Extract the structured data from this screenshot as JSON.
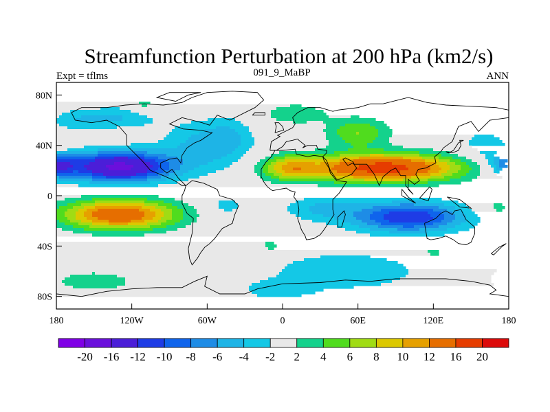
{
  "chart_data": {
    "type": "contour-map",
    "title": "Streamfunction Perturbation at 200 hPa (km2/s)",
    "left_string": "Expt = tflms",
    "center_string": "091_9_MaBP",
    "right_string": "ANN",
    "xlim": [
      -180,
      180
    ],
    "ylim": [
      -90,
      90
    ],
    "x_ticks": [
      {
        "value": -180,
        "label": "180"
      },
      {
        "value": -120,
        "label": "120W"
      },
      {
        "value": -60,
        "label": "60W"
      },
      {
        "value": 0,
        "label": "0"
      },
      {
        "value": 60,
        "label": "60E"
      },
      {
        "value": 120,
        "label": "120E"
      },
      {
        "value": 180,
        "label": "180"
      }
    ],
    "y_ticks": [
      {
        "value": 80,
        "label": "80N"
      },
      {
        "value": 40,
        "label": "40N"
      },
      {
        "value": 0,
        "label": "0"
      },
      {
        "value": -40,
        "label": "40S"
      },
      {
        "value": -80,
        "label": "80S"
      }
    ],
    "levels": [
      -20,
      -16,
      -12,
      -10,
      -8,
      -6,
      -4,
      -2,
      2,
      4,
      6,
      8,
      10,
      12,
      16,
      20
    ],
    "colors": [
      "#7f00e6",
      "#6a10dc",
      "#4b1ed8",
      "#1e3ce6",
      "#0f64ec",
      "#1e8ce6",
      "#1eb4e6",
      "#14c8e6",
      "#e8e8e8",
      "#14d28c",
      "#50dc1e",
      "#a0dc14",
      "#dcc800",
      "#e6a000",
      "#e66e00",
      "#e63c00",
      "#dc0a0a"
    ],
    "anomalies": [
      {
        "lon": -130,
        "lat": 23,
        "slon": 42,
        "slat": 12,
        "amp": -17
      },
      {
        "lon": -180,
        "lat": 25,
        "slon": 15,
        "slat": 10,
        "amp": -9
      },
      {
        "lon": 180,
        "lat": 25,
        "slon": 15,
        "slat": 10,
        "amp": -9
      },
      {
        "lon": -60,
        "lat": 40,
        "slon": 35,
        "slat": 20,
        "amp": -5
      },
      {
        "lon": -130,
        "lat": 62,
        "slon": 30,
        "slat": 9,
        "amp": -4
      },
      {
        "lon": -165,
        "lat": 60,
        "slon": 20,
        "slat": 9,
        "amp": -3
      },
      {
        "lon": -42,
        "lat": 48,
        "slon": 16,
        "slat": 14,
        "amp": -2
      },
      {
        "lon": 160,
        "lat": 40,
        "slon": 20,
        "slat": 15,
        "amp": -3
      },
      {
        "lon": 80,
        "lat": 22,
        "slon": 60,
        "slat": 11,
        "amp": 18
      },
      {
        "lon": 5,
        "lat": 22,
        "slon": 22,
        "slat": 10,
        "amp": 8
      },
      {
        "lon": 60,
        "lat": 50,
        "slon": 25,
        "slat": 12,
        "amp": 6
      },
      {
        "lon": 10,
        "lat": 65,
        "slon": 25,
        "slat": 8,
        "amp": 4
      },
      {
        "lon": -110,
        "lat": 72,
        "slon": 12,
        "slat": 7,
        "amp": 3
      },
      {
        "lon": -180,
        "lat": 40,
        "slon": 12,
        "slat": 7,
        "amp": 3
      },
      {
        "lon": -130,
        "lat": -15,
        "slon": 45,
        "slat": 12,
        "amp": 15
      },
      {
        "lon": 100,
        "lat": -17,
        "slon": 45,
        "slat": 12,
        "amp": -12
      },
      {
        "lon": 30,
        "lat": -10,
        "slon": 30,
        "slat": 10,
        "amp": -4
      },
      {
        "lon": -45,
        "lat": -8,
        "slon": 15,
        "slat": 8,
        "amp": -3
      },
      {
        "lon": -150,
        "lat": -68,
        "slon": 40,
        "slat": 10,
        "amp": 3
      },
      {
        "lon": 50,
        "lat": -60,
        "slon": 60,
        "slat": 15,
        "amp": -4
      },
      {
        "lon": -5,
        "lat": -75,
        "slon": 30,
        "slat": 8,
        "amp": -3
      },
      {
        "lon": -10,
        "lat": -40,
        "slon": 8,
        "slat": 5,
        "amp": 3
      },
      {
        "lon": 120,
        "lat": -45,
        "slon": 10,
        "slat": 6,
        "amp": 3
      },
      {
        "lon": 170,
        "lat": -10,
        "slon": 15,
        "slat": 8,
        "amp": 3
      },
      {
        "lon": 175,
        "lat": -65,
        "slon": 15,
        "slat": 12,
        "amp": 3
      }
    ],
    "coastlines": [
      [
        [
          -168,
          66
        ],
        [
          -160,
          70
        ],
        [
          -140,
          70
        ],
        [
          -125,
          72
        ],
        [
          -110,
          73
        ],
        [
          -95,
          72
        ],
        [
          -80,
          74
        ],
        [
          -72,
          78
        ],
        [
          -60,
          82
        ],
        [
          -40,
          83
        ],
        [
          -20,
          82
        ],
        [
          -15,
          76
        ],
        [
          -22,
          70
        ],
        [
          -42,
          60
        ],
        [
          -52,
          64
        ],
        [
          -58,
          56
        ],
        [
          -64,
          58
        ],
        [
          -80,
          62
        ],
        [
          -90,
          57
        ],
        [
          -79,
          53
        ],
        [
          -65,
          52
        ],
        [
          -56,
          50
        ],
        [
          -65,
          44
        ],
        [
          -70,
          42
        ],
        [
          -76,
          38
        ],
        [
          -80,
          32
        ],
        [
          -81,
          26
        ],
        [
          -84,
          30
        ],
        [
          -90,
          29
        ],
        [
          -97,
          26
        ],
        [
          -97,
          22
        ],
        [
          -92,
          18
        ],
        [
          -88,
          21
        ],
        [
          -83,
          14
        ],
        [
          -77,
          8
        ],
        [
          -80,
          8
        ],
        [
          -86,
          12
        ],
        [
          -95,
          16
        ],
        [
          -105,
          20
        ],
        [
          -112,
          28
        ],
        [
          -118,
          34
        ],
        [
          -124,
          40
        ],
        [
          -124,
          48
        ],
        [
          -130,
          55
        ],
        [
          -140,
          60
        ],
        [
          -152,
          58
        ],
        [
          -165,
          60
        ],
        [
          -168,
          66
        ]
      ],
      [
        [
          -77,
          8
        ],
        [
          -72,
          12
        ],
        [
          -63,
          10
        ],
        [
          -52,
          5
        ],
        [
          -50,
          0
        ],
        [
          -40,
          -3
        ],
        [
          -35,
          -8
        ],
        [
          -38,
          -15
        ],
        [
          -40,
          -22
        ],
        [
          -48,
          -26
        ],
        [
          -54,
          -34
        ],
        [
          -58,
          -38
        ],
        [
          -62,
          -41
        ],
        [
          -65,
          -45
        ],
        [
          -68,
          -50
        ],
        [
          -72,
          -55
        ],
        [
          -74,
          -50
        ],
        [
          -75,
          -42
        ],
        [
          -72,
          -30
        ],
        [
          -71,
          -18
        ],
        [
          -76,
          -14
        ],
        [
          -80,
          -6
        ],
        [
          -80,
          0
        ],
        [
          -78,
          4
        ],
        [
          -77,
          8
        ]
      ],
      [
        [
          -10,
          36
        ],
        [
          -9,
          43
        ],
        [
          -2,
          47
        ],
        [
          -4,
          48
        ],
        [
          2,
          51
        ],
        [
          8,
          54
        ],
        [
          10,
          57
        ],
        [
          8,
          62
        ],
        [
          12,
          66
        ],
        [
          20,
          70
        ],
        [
          30,
          70
        ],
        [
          40,
          67
        ],
        [
          44,
          68
        ],
        [
          60,
          70
        ],
        [
          70,
          73
        ],
        [
          80,
          73
        ],
        [
          100,
          78
        ],
        [
          115,
          74
        ],
        [
          130,
          72
        ],
        [
          150,
          71
        ],
        [
          170,
          70
        ],
        [
          180,
          68
        ],
        [
          180,
          62
        ],
        [
          165,
          60
        ],
        [
          160,
          55
        ],
        [
          156,
          51
        ],
        [
          150,
          59
        ],
        [
          140,
          55
        ],
        [
          135,
          43
        ],
        [
          128,
          38
        ],
        [
          126,
          35
        ],
        [
          121,
          31
        ],
        [
          122,
          26
        ],
        [
          114,
          22
        ],
        [
          108,
          21
        ],
        [
          106,
          17
        ],
        [
          109,
          12
        ],
        [
          105,
          9
        ],
        [
          100,
          13
        ],
        [
          100,
          5
        ],
        [
          104,
          1
        ],
        [
          98,
          8
        ],
        [
          98,
          16
        ],
        [
          94,
          16
        ],
        [
          90,
          22
        ],
        [
          86,
          20
        ],
        [
          80,
          15
        ],
        [
          77,
          8
        ],
        [
          73,
          17
        ],
        [
          70,
          21
        ],
        [
          67,
          25
        ],
        [
          57,
          25
        ],
        [
          56,
          27
        ],
        [
          50,
          30
        ],
        [
          48,
          29
        ],
        [
          52,
          24
        ],
        [
          56,
          26
        ],
        [
          59,
          22
        ],
        [
          55,
          17
        ],
        [
          45,
          13
        ],
        [
          43,
          13
        ],
        [
          38,
          20
        ],
        [
          35,
          28
        ],
        [
          32,
          31
        ],
        [
          35,
          34
        ],
        [
          35,
          36
        ],
        [
          28,
          37
        ],
        [
          27,
          40
        ],
        [
          22,
          40
        ],
        [
          20,
          40
        ],
        [
          16,
          38
        ],
        [
          18,
          40
        ],
        [
          13,
          44
        ],
        [
          12,
          45
        ],
        [
          8,
          44
        ],
        [
          3,
          43
        ],
        [
          0,
          39
        ],
        [
          -5,
          36
        ],
        [
          -10,
          36
        ]
      ],
      [
        [
          -17,
          15
        ],
        [
          -17,
          21
        ],
        [
          -13,
          27
        ],
        [
          -9,
          31
        ],
        [
          -6,
          36
        ],
        [
          0,
          36
        ],
        [
          10,
          37
        ],
        [
          11,
          33
        ],
        [
          20,
          31
        ],
        [
          25,
          32
        ],
        [
          32,
          31
        ],
        [
          33,
          28
        ],
        [
          37,
          22
        ],
        [
          38,
          18
        ],
        [
          43,
          12
        ],
        [
          51,
          11
        ],
        [
          45,
          2
        ],
        [
          40,
          -3
        ],
        [
          40,
          -11
        ],
        [
          41,
          -15
        ],
        [
          35,
          -24
        ],
        [
          33,
          -27
        ],
        [
          30,
          -31
        ],
        [
          25,
          -34
        ],
        [
          19,
          -35
        ],
        [
          18,
          -32
        ],
        [
          15,
          -27
        ],
        [
          12,
          -18
        ],
        [
          13,
          -11
        ],
        [
          12,
          -5
        ],
        [
          9,
          -1
        ],
        [
          10,
          3
        ],
        [
          6,
          4
        ],
        [
          3,
          6
        ],
        [
          -3,
          5
        ],
        [
          -8,
          4
        ],
        [
          -12,
          7
        ],
        [
          -15,
          11
        ],
        [
          -17,
          15
        ]
      ],
      [
        [
          113,
          -22
        ],
        [
          115,
          -34
        ],
        [
          118,
          -35
        ],
        [
          124,
          -34
        ],
        [
          130,
          -32
        ],
        [
          136,
          -35
        ],
        [
          140,
          -38
        ],
        [
          146,
          -39
        ],
        [
          150,
          -37
        ],
        [
          153,
          -30
        ],
        [
          153,
          -25
        ],
        [
          146,
          -19
        ],
        [
          142,
          -11
        ],
        [
          137,
          -12
        ],
        [
          135,
          -15
        ],
        [
          130,
          -12
        ],
        [
          126,
          -14
        ],
        [
          122,
          -18
        ],
        [
          113,
          -22
        ]
      ],
      [
        [
          -180,
          -78
        ],
        [
          -160,
          -80
        ],
        [
          -140,
          -76
        ],
        [
          -120,
          -74
        ],
        [
          -100,
          -73
        ],
        [
          -80,
          -73
        ],
        [
          -70,
          -68
        ],
        [
          -60,
          -64
        ],
        [
          -62,
          -72
        ],
        [
          -50,
          -78
        ],
        [
          -30,
          -78
        ],
        [
          -20,
          -74
        ],
        [
          0,
          -70
        ],
        [
          30,
          -69
        ],
        [
          50,
          -67
        ],
        [
          70,
          -68
        ],
        [
          90,
          -66
        ],
        [
          110,
          -66
        ],
        [
          130,
          -66
        ],
        [
          150,
          -68
        ],
        [
          165,
          -71
        ],
        [
          170,
          -75
        ],
        [
          165,
          -78
        ],
        [
          180,
          -80
        ]
      ],
      [
        [
          130,
          35
        ],
        [
          135,
          34
        ],
        [
          140,
          36
        ],
        [
          142,
          40
        ],
        [
          141,
          44
        ],
        [
          144,
          44
        ],
        [
          140,
          42
        ],
        [
          136,
          36
        ],
        [
          132,
          34
        ],
        [
          130,
          35
        ]
      ],
      [
        [
          -6,
          50
        ],
        [
          -3,
          51
        ],
        [
          1,
          52
        ],
        [
          0,
          55
        ],
        [
          -3,
          58
        ],
        [
          -6,
          58
        ],
        [
          -5,
          55
        ],
        [
          -6,
          50
        ]
      ],
      [
        [
          44,
          -25
        ],
        [
          47,
          -25
        ],
        [
          50,
          -15
        ],
        [
          49,
          -12
        ],
        [
          44,
          -17
        ],
        [
          44,
          -25
        ]
      ],
      [
        [
          -85,
          75
        ],
        [
          -75,
          80
        ],
        [
          -65,
          82
        ],
        [
          -90,
          82
        ],
        [
          -100,
          78
        ],
        [
          -85,
          75
        ]
      ],
      [
        [
          95,
          0
        ],
        [
          104,
          -5
        ],
        [
          106,
          -6
        ],
        [
          100,
          -1
        ],
        [
          95,
          5
        ],
        [
          95,
          0
        ]
      ],
      [
        [
          109,
          -2
        ],
        [
          117,
          7
        ],
        [
          119,
          5
        ],
        [
          116,
          -4
        ],
        [
          109,
          -2
        ]
      ],
      [
        [
          -24,
          64
        ],
        [
          -14,
          64
        ],
        [
          -14,
          66
        ],
        [
          -22,
          66
        ],
        [
          -24,
          64
        ]
      ],
      [
        [
          131,
          -1
        ],
        [
          141,
          -3
        ],
        [
          150,
          -10
        ],
        [
          141,
          -9
        ],
        [
          131,
          -1
        ]
      ],
      [
        [
          166,
          -46
        ],
        [
          172,
          -41
        ],
        [
          178,
          -38
        ],
        [
          174,
          -41
        ],
        [
          168,
          -47
        ],
        [
          166,
          -46
        ]
      ]
    ]
  }
}
